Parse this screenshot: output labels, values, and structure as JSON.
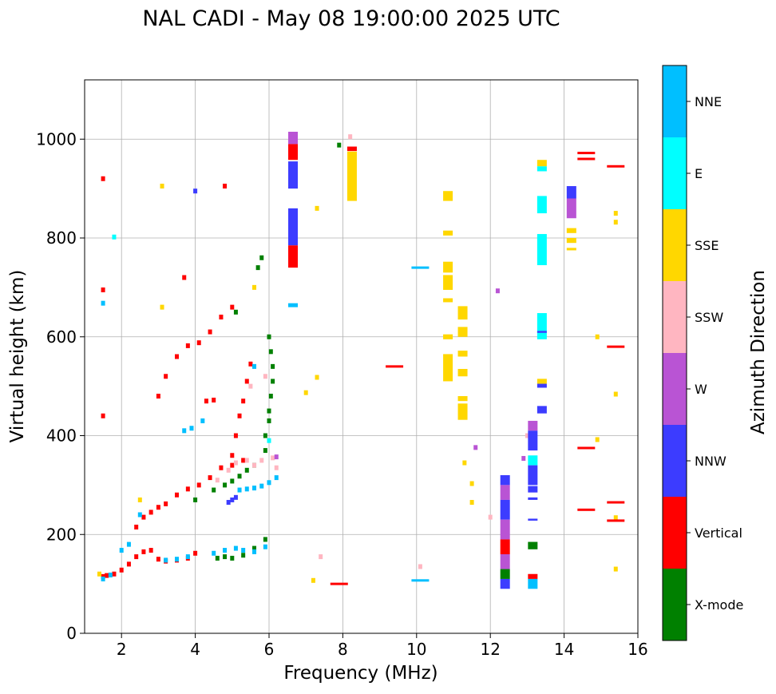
{
  "chart_data": {
    "type": "scatter",
    "title": "NAL CADI - May 08 19:00:00 2025 UTC",
    "xlabel": "Frequency (MHz)",
    "ylabel": "Virtual height (km)",
    "xlim": [
      1,
      16
    ],
    "ylim": [
      0,
      1120
    ],
    "xticks": [
      2,
      4,
      6,
      8,
      10,
      12,
      14,
      16
    ],
    "yticks": [
      0,
      200,
      400,
      600,
      800,
      1000
    ],
    "grid": true,
    "colorbar": {
      "label": "Azimuth Direction",
      "categories": [
        {
          "name": "X-mode",
          "color": "#008000"
        },
        {
          "name": "Vertical",
          "color": "#ff0000"
        },
        {
          "name": "NNW",
          "color": "#3c3cff"
        },
        {
          "name": "W",
          "color": "#b954d4"
        },
        {
          "name": "SSW",
          "color": "#ffb6c1"
        },
        {
          "name": "SSE",
          "color": "#ffd700"
        },
        {
          "name": "E",
          "color": "#00ffff"
        },
        {
          "name": "NNE",
          "color": "#00bfff"
        }
      ]
    },
    "traces": [
      {
        "name": "Vertical",
        "points": [
          [
            1.5,
            115
          ],
          [
            1.6,
            117
          ],
          [
            1.8,
            120
          ],
          [
            2.0,
            128
          ],
          [
            2.2,
            140
          ],
          [
            2.4,
            155
          ],
          [
            2.6,
            165
          ],
          [
            2.8,
            168
          ],
          [
            3.0,
            150
          ],
          [
            3.2,
            146
          ],
          [
            3.5,
            148
          ],
          [
            3.8,
            152
          ],
          [
            4.0,
            162
          ],
          [
            2.4,
            215
          ],
          [
            2.6,
            235
          ],
          [
            2.8,
            245
          ],
          [
            3.0,
            255
          ],
          [
            3.2,
            262
          ],
          [
            3.5,
            280
          ],
          [
            3.8,
            292
          ],
          [
            4.1,
            300
          ],
          [
            4.4,
            315
          ],
          [
            4.7,
            335
          ],
          [
            5.0,
            340
          ],
          [
            5.3,
            350
          ],
          [
            3.0,
            480
          ],
          [
            3.2,
            520
          ],
          [
            3.5,
            560
          ],
          [
            3.8,
            582
          ],
          [
            4.1,
            588
          ],
          [
            4.4,
            610
          ],
          [
            4.7,
            640
          ],
          [
            5.0,
            660
          ],
          [
            4.3,
            470
          ],
          [
            4.5,
            472
          ],
          [
            5.0,
            360
          ],
          [
            5.1,
            400
          ],
          [
            5.2,
            440
          ],
          [
            5.3,
            470
          ],
          [
            5.4,
            510
          ],
          [
            5.5,
            545
          ],
          [
            4.8,
            905
          ],
          [
            3.7,
            720
          ],
          [
            1.5,
            440
          ],
          [
            1.5,
            695
          ],
          [
            1.5,
            920
          ]
        ]
      },
      {
        "name": "X-mode",
        "points": [
          [
            4.6,
            152
          ],
          [
            4.8,
            155
          ],
          [
            5.0,
            152
          ],
          [
            5.3,
            158
          ],
          [
            5.6,
            172
          ],
          [
            5.9,
            190
          ],
          [
            4.8,
            300
          ],
          [
            5.0,
            308
          ],
          [
            5.2,
            318
          ],
          [
            5.4,
            330
          ],
          [
            5.6,
            340
          ],
          [
            5.9,
            370
          ],
          [
            5.9,
            400
          ],
          [
            6.0,
            430
          ],
          [
            6.0,
            450
          ],
          [
            6.05,
            480
          ],
          [
            6.1,
            510
          ],
          [
            6.1,
            540
          ],
          [
            6.05,
            570
          ],
          [
            6.0,
            600
          ],
          [
            5.7,
            740
          ],
          [
            5.8,
            760
          ],
          [
            4.0,
            270
          ],
          [
            4.5,
            290
          ],
          [
            5.1,
            650
          ],
          [
            7.9,
            988
          ]
        ]
      },
      {
        "name": "NNE",
        "points": [
          [
            3.2,
            148
          ],
          [
            3.5,
            150
          ],
          [
            3.8,
            155
          ],
          [
            4.5,
            162
          ],
          [
            4.8,
            168
          ],
          [
            5.1,
            172
          ],
          [
            5.3,
            168
          ],
          [
            5.6,
            165
          ],
          [
            5.9,
            175
          ],
          [
            5.2,
            290
          ],
          [
            5.4,
            292
          ],
          [
            5.6,
            294
          ],
          [
            5.8,
            298
          ],
          [
            6.0,
            305
          ],
          [
            6.2,
            315
          ],
          [
            3.7,
            410
          ],
          [
            3.9,
            415
          ],
          [
            4.2,
            430
          ],
          [
            5.6,
            540
          ],
          [
            1.5,
            110
          ],
          [
            1.7,
            118
          ],
          [
            2.0,
            168
          ],
          [
            2.2,
            180
          ],
          [
            2.5,
            240
          ],
          [
            1.5,
            668
          ]
        ]
      },
      {
        "name": "NNW",
        "points": [
          [
            4.9,
            265
          ],
          [
            5.0,
            270
          ],
          [
            5.1,
            275
          ],
          [
            4.0,
            895
          ]
        ]
      },
      {
        "name": "SSW",
        "points": [
          [
            4.6,
            310
          ],
          [
            4.9,
            330
          ],
          [
            5.1,
            345
          ],
          [
            5.4,
            350
          ],
          [
            5.6,
            340
          ],
          [
            5.8,
            350
          ],
          [
            6.1,
            355
          ],
          [
            6.2,
            335
          ],
          [
            5.5,
            500
          ],
          [
            5.9,
            520
          ],
          [
            8.2,
            1005
          ],
          [
            7.4,
            155
          ],
          [
            10.1,
            135
          ],
          [
            12.0,
            235
          ],
          [
            13.0,
            400
          ]
        ]
      },
      {
        "name": "E",
        "points": [
          [
            6.0,
            390
          ],
          [
            1.8,
            802
          ]
        ]
      },
      {
        "name": "SSE",
        "points": [
          [
            1.4,
            120
          ],
          [
            2.5,
            270
          ],
          [
            3.1,
            905
          ],
          [
            3.1,
            660
          ],
          [
            5.6,
            700
          ],
          [
            7.3,
            860
          ],
          [
            7.3,
            518
          ],
          [
            7.0,
            487
          ],
          [
            11.3,
            345
          ],
          [
            11.5,
            303
          ],
          [
            11.5,
            265
          ],
          [
            14.9,
            600
          ],
          [
            14.9,
            392
          ],
          [
            15.4,
            850
          ],
          [
            15.4,
            832
          ],
          [
            15.4,
            484
          ],
          [
            15.4,
            130
          ],
          [
            15.4,
            234
          ],
          [
            7.2,
            107
          ]
        ]
      },
      {
        "name": "W",
        "points": [
          [
            6.2,
            357
          ],
          [
            12.2,
            693
          ],
          [
            11.6,
            376
          ],
          [
            12.9,
            354
          ]
        ]
      }
    ],
    "columns": [
      {
        "f": 6.65,
        "segments": [
          [
            990,
            1015,
            "W"
          ],
          [
            958,
            990,
            "Vertical"
          ],
          [
            900,
            955,
            "NNW"
          ],
          [
            785,
            860,
            "NNW"
          ],
          [
            740,
            785,
            "Vertical"
          ],
          [
            660,
            668,
            "NNE"
          ]
        ]
      },
      {
        "f": 8.25,
        "segments": [
          [
            875,
            975,
            "SSE"
          ],
          [
            976,
            985,
            "Vertical"
          ]
        ]
      },
      {
        "f": 10.85,
        "segments": [
          [
            875,
            895,
            "SSE"
          ],
          [
            805,
            815,
            "SSE"
          ],
          [
            730,
            752,
            "SSE"
          ],
          [
            695,
            725,
            "SSE"
          ],
          [
            670,
            678,
            "SSE"
          ],
          [
            595,
            605,
            "SSE"
          ],
          [
            510,
            565,
            "SSE"
          ]
        ]
      },
      {
        "f": 11.25,
        "segments": [
          [
            635,
            662,
            "SSE"
          ],
          [
            600,
            620,
            "SSE"
          ],
          [
            560,
            572,
            "SSE"
          ],
          [
            520,
            535,
            "SSE"
          ],
          [
            470,
            480,
            "SSE"
          ],
          [
            432,
            465,
            "SSE"
          ]
        ]
      },
      {
        "f": 12.4,
        "segments": [
          [
            300,
            320,
            "NNW"
          ],
          [
            270,
            300,
            "W"
          ],
          [
            230,
            270,
            "NNW"
          ],
          [
            190,
            230,
            "W"
          ],
          [
            160,
            190,
            "Vertical"
          ],
          [
            130,
            160,
            "W"
          ],
          [
            110,
            130,
            "X-mode"
          ],
          [
            90,
            110,
            "NNW"
          ]
        ]
      },
      {
        "f": 13.15,
        "segments": [
          [
            410,
            430,
            "W"
          ],
          [
            370,
            410,
            "NNW"
          ],
          [
            340,
            360,
            "E"
          ],
          [
            300,
            340,
            "NNW"
          ],
          [
            285,
            298,
            "NNW"
          ],
          [
            270,
            275,
            "NNW"
          ],
          [
            228,
            232,
            "NNW"
          ],
          [
            170,
            185,
            "X-mode"
          ],
          [
            110,
            120,
            "Vertical"
          ],
          [
            90,
            110,
            "NNE"
          ]
        ]
      },
      {
        "f": 13.4,
        "segments": [
          [
            945,
            958,
            "SSE"
          ],
          [
            935,
            945,
            "E"
          ],
          [
            850,
            885,
            "E"
          ],
          [
            745,
            808,
            "E"
          ],
          [
            595,
            648,
            "E"
          ],
          [
            608,
            612,
            "NNW"
          ],
          [
            505,
            515,
            "SSE"
          ],
          [
            497,
            505,
            "NNW"
          ],
          [
            445,
            460,
            "NNW"
          ]
        ]
      },
      {
        "f": 14.2,
        "segments": [
          [
            880,
            905,
            "NNW"
          ],
          [
            840,
            880,
            "W"
          ],
          [
            810,
            820,
            "SSE"
          ],
          [
            790,
            800,
            "SSE"
          ],
          [
            775,
            780,
            "SSE"
          ]
        ]
      }
    ],
    "dashes": [
      {
        "f": 14.6,
        "h": 972,
        "series": "Vertical"
      },
      {
        "f": 14.6,
        "h": 960,
        "series": "Vertical"
      },
      {
        "f": 15.4,
        "h": 945,
        "series": "Vertical"
      },
      {
        "f": 15.4,
        "h": 580,
        "series": "Vertical"
      },
      {
        "f": 14.6,
        "h": 375,
        "series": "Vertical"
      },
      {
        "f": 14.6,
        "h": 250,
        "series": "Vertical"
      },
      {
        "f": 15.4,
        "h": 265,
        "series": "Vertical"
      },
      {
        "f": 15.4,
        "h": 228,
        "series": "Vertical"
      },
      {
        "f": 9.4,
        "h": 540,
        "series": "Vertical"
      },
      {
        "f": 7.9,
        "h": 100,
        "series": "Vertical"
      },
      {
        "f": 10.1,
        "h": 107,
        "series": "NNE"
      },
      {
        "f": 10.1,
        "h": 740,
        "series": "NNE"
      }
    ]
  }
}
